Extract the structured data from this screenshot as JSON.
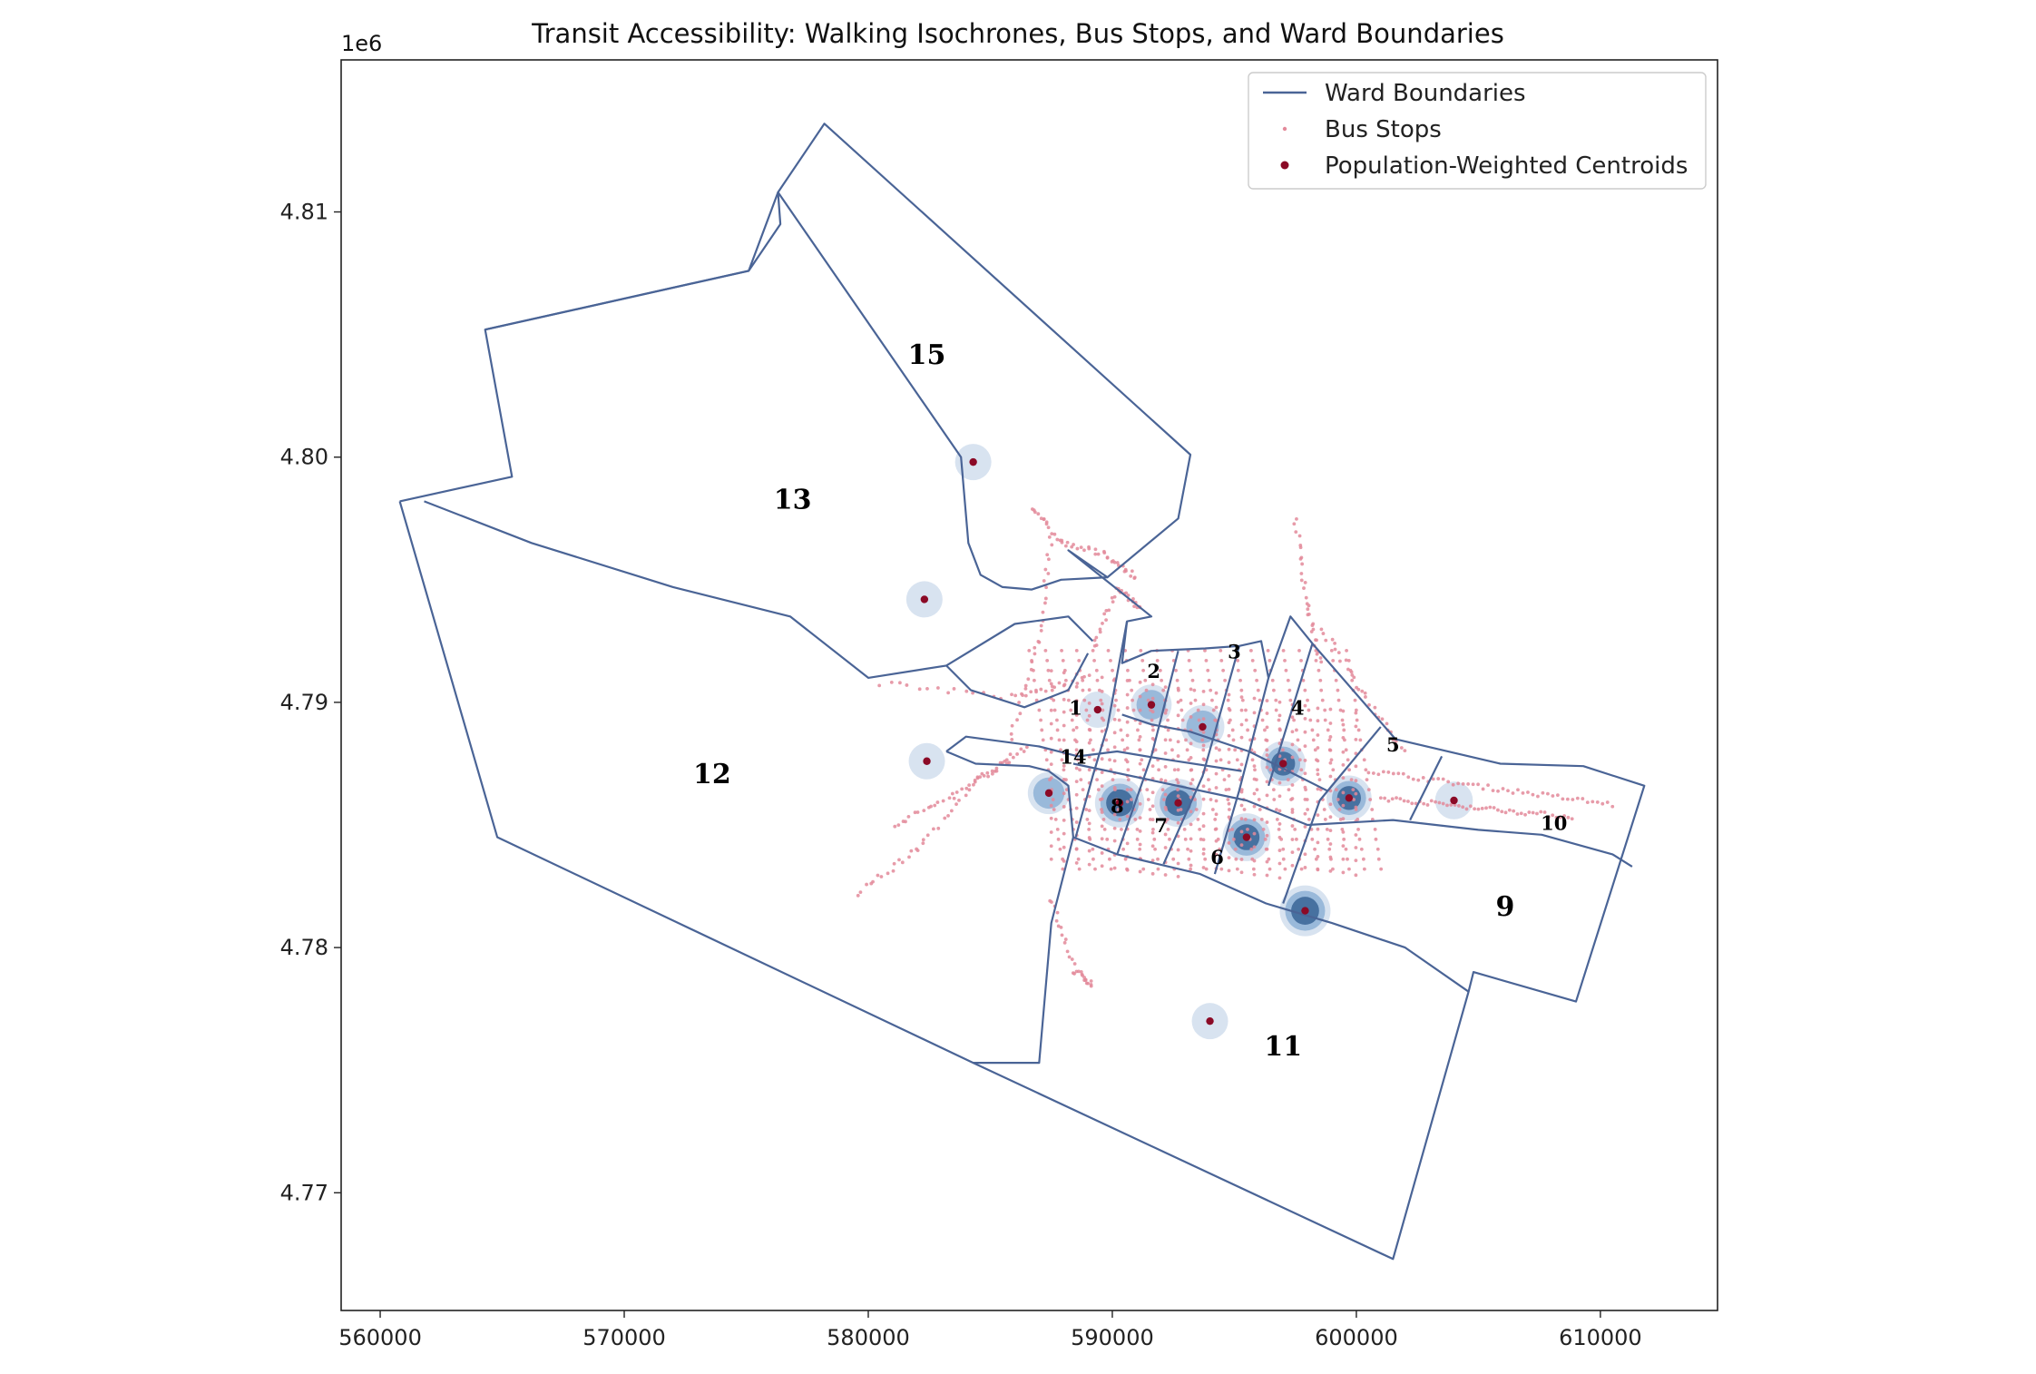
{
  "chart_data": {
    "type": "map",
    "title": "Transit Accessibility: Walking Isochrones, Bus Stops, and Ward Boundaries",
    "axes": {
      "x": {
        "ticks": [
          560000,
          570000,
          580000,
          590000,
          600000,
          610000
        ],
        "tick_labels": [
          "560000",
          "570000",
          "580000",
          "590000",
          "600000",
          "610000"
        ],
        "xlim": [
          558400,
          614800
        ]
      },
      "y": {
        "ticks": [
          4.77,
          4.78,
          4.79,
          4.8,
          4.81
        ],
        "tick_labels": [
          "4.77",
          "4.78",
          "4.79",
          "4.80",
          "4.81"
        ],
        "ylim": [
          4.7652,
          4.8162
        ],
        "offset_label": "1e6"
      },
      "grid": false
    },
    "legend": {
      "placement": "top-right",
      "entries": [
        {
          "label": "Ward Boundaries",
          "kind": "line",
          "color": "#4a6496"
        },
        {
          "label": "Bus Stops",
          "kind": "marker-small",
          "color": "#e38a9a"
        },
        {
          "label": "Population-Weighted Centroids",
          "kind": "marker",
          "color": "#8b0a26"
        }
      ]
    },
    "wards": [
      {
        "id": "1",
        "label_x": 588500,
        "label_y": 4.7895
      },
      {
        "id": "2",
        "label_x": 591700,
        "label_y": 4.791
      },
      {
        "id": "3",
        "label_x": 595000,
        "label_y": 4.7918
      },
      {
        "id": "4",
        "label_x": 597600,
        "label_y": 4.7895
      },
      {
        "id": "5",
        "label_x": 601500,
        "label_y": 4.788
      },
      {
        "id": "6",
        "label_x": 594300,
        "label_y": 4.7834
      },
      {
        "id": "7",
        "label_x": 592000,
        "label_y": 4.7847
      },
      {
        "id": "8",
        "label_x": 590200,
        "label_y": 4.7855
      },
      {
        "id": "9",
        "label_x": 606100,
        "label_y": 4.7813
      },
      {
        "id": "10",
        "label_x": 608100,
        "label_y": 4.7848
      },
      {
        "id": "11",
        "label_x": 597000,
        "label_y": 4.7756
      },
      {
        "id": "12",
        "label_x": 573600,
        "label_y": 4.7867
      },
      {
        "id": "13",
        "label_x": 576900,
        "label_y": 4.7979
      },
      {
        "id": "14",
        "label_x": 588400,
        "label_y": 4.7875
      },
      {
        "id": "15",
        "label_x": 582400,
        "label_y": 4.8038
      }
    ],
    "ward_boundaries": [
      {
        "name": "outer",
        "points": [
          [
            560800,
            4.7982
          ],
          [
            565400,
            4.7992
          ],
          [
            564300,
            4.8052
          ],
          [
            575100,
            4.8076
          ],
          [
            576400,
            4.8095
          ],
          [
            576300,
            4.8108
          ],
          [
            578200,
            4.8136
          ],
          [
            593200,
            4.8001
          ],
          [
            592700,
            4.7975
          ],
          [
            589800,
            4.7951
          ],
          [
            588200,
            4.7962
          ],
          [
            591600,
            4.7935
          ],
          [
            590600,
            4.7933
          ],
          [
            590400,
            4.7916
          ],
          [
            591600,
            4.7921
          ],
          [
            593800,
            4.7922
          ],
          [
            595200,
            4.7923
          ],
          [
            596100,
            4.7925
          ],
          [
            596400,
            4.791
          ],
          [
            597300,
            4.7935
          ],
          [
            598200,
            4.7924
          ],
          [
            601600,
            4.7885
          ],
          [
            605900,
            4.7875
          ],
          [
            609300,
            4.7874
          ],
          [
            611800,
            4.7866
          ],
          [
            609000,
            4.7778
          ],
          [
            604800,
            4.779
          ],
          [
            604600,
            4.7782
          ],
          [
            601500,
            4.7673
          ],
          [
            584300,
            4.7753
          ],
          [
            564800,
            4.7845
          ],
          [
            560800,
            4.7982
          ]
        ]
      },
      {
        "name": "13-15",
        "points": [
          [
            564300,
            4.8052
          ],
          [
            575100,
            4.8076
          ],
          [
            576300,
            4.8108
          ],
          [
            583800,
            4.8
          ],
          [
            584100,
            4.7965
          ],
          [
            584600,
            4.7952
          ],
          [
            585500,
            4.7947
          ],
          [
            586700,
            4.7946
          ],
          [
            587900,
            4.795
          ],
          [
            589800,
            4.7951
          ]
        ]
      },
      {
        "name": "12-13",
        "points": [
          [
            561800,
            4.7982
          ],
          [
            566200,
            4.7965
          ],
          [
            572000,
            4.7947
          ],
          [
            576800,
            4.7935
          ],
          [
            580000,
            4.791
          ],
          [
            583200,
            4.7915
          ],
          [
            586000,
            4.7932
          ],
          [
            588200,
            4.7935
          ],
          [
            589200,
            4.7925
          ]
        ]
      },
      {
        "name": "13-1",
        "points": [
          [
            583200,
            4.7915
          ],
          [
            584200,
            4.7905
          ],
          [
            586400,
            4.7898
          ],
          [
            588200,
            4.7905
          ],
          [
            589000,
            4.792
          ]
        ]
      },
      {
        "name": "core-south",
        "points": [
          [
            588400,
            4.7875
          ],
          [
            595500,
            4.786
          ],
          [
            598000,
            4.785
          ],
          [
            601500,
            4.7852
          ],
          [
            605000,
            4.7848
          ],
          [
            607600,
            4.7846
          ],
          [
            610500,
            4.7838
          ],
          [
            611300,
            4.7833
          ]
        ]
      },
      {
        "name": "14-north",
        "points": [
          [
            583200,
            4.788
          ],
          [
            584000,
            4.7886
          ],
          [
            587000,
            4.7882
          ],
          [
            588600,
            4.7878
          ],
          [
            590200,
            4.788
          ],
          [
            592000,
            4.7877
          ],
          [
            595300,
            4.7872
          ]
        ]
      },
      {
        "name": "14-west",
        "points": [
          [
            583200,
            4.788
          ],
          [
            584400,
            4.7875
          ],
          [
            586600,
            4.7874
          ],
          [
            587400,
            4.7872
          ],
          [
            588200,
            4.7866
          ],
          [
            588400,
            4.7845
          ]
        ]
      },
      {
        "name": "11-top",
        "points": [
          [
            588400,
            4.7845
          ],
          [
            590200,
            4.7838
          ],
          [
            593600,
            4.783
          ],
          [
            596300,
            4.7818
          ],
          [
            599000,
            4.781
          ],
          [
            602000,
            4.78
          ],
          [
            604600,
            4.7782
          ]
        ]
      },
      {
        "name": "11-west",
        "points": [
          [
            588400,
            4.7845
          ],
          [
            587500,
            4.781
          ],
          [
            587000,
            4.7753
          ],
          [
            584300,
            4.7753
          ]
        ]
      },
      {
        "name": "v-2a",
        "points": [
          [
            590600,
            4.7933
          ],
          [
            589800,
            4.789
          ],
          [
            589200,
            4.787
          ],
          [
            588500,
            4.7845
          ]
        ]
      },
      {
        "name": "v-2b",
        "points": [
          [
            592700,
            4.7921
          ],
          [
            591600,
            4.7878
          ],
          [
            590200,
            4.7838
          ]
        ]
      },
      {
        "name": "v-3",
        "points": [
          [
            595200,
            4.7923
          ],
          [
            593700,
            4.787
          ],
          [
            592100,
            4.7834
          ]
        ]
      },
      {
        "name": "v-4",
        "points": [
          [
            596400,
            4.791
          ],
          [
            595200,
            4.7864
          ],
          [
            594200,
            4.783
          ]
        ]
      },
      {
        "name": "v-4b",
        "points": [
          [
            598200,
            4.7924
          ],
          [
            596400,
            4.7866
          ]
        ]
      },
      {
        "name": "v-5",
        "points": [
          [
            601000,
            4.789
          ],
          [
            598500,
            4.786
          ],
          [
            597000,
            4.7818
          ]
        ]
      },
      {
        "name": "v-10",
        "points": [
          [
            603500,
            4.7878
          ],
          [
            602200,
            4.7852
          ]
        ]
      },
      {
        "name": "diag",
        "points": [
          [
            590400,
            4.7895
          ],
          [
            591600,
            4.7891
          ],
          [
            593200,
            4.7888
          ],
          [
            595600,
            4.788
          ],
          [
            597600,
            4.787
          ],
          [
            598800,
            4.7864
          ]
        ]
      }
    ],
    "centroids": [
      {
        "x": 584300,
        "y": 4.7998,
        "iso": 0.0
      },
      {
        "x": 582300,
        "y": 4.7942,
        "iso": 0.0
      },
      {
        "x": 582400,
        "y": 4.7876,
        "iso": 0.0
      },
      {
        "x": 587400,
        "y": 4.7863,
        "iso": 0.4
      },
      {
        "x": 589400,
        "y": 4.7897,
        "iso": 0.0
      },
      {
        "x": 591600,
        "y": 4.7899,
        "iso": 0.3
      },
      {
        "x": 593700,
        "y": 4.789,
        "iso": 0.5
      },
      {
        "x": 597000,
        "y": 4.7875,
        "iso": 0.6
      },
      {
        "x": 599700,
        "y": 4.7861,
        "iso": 0.6
      },
      {
        "x": 604000,
        "y": 4.786,
        "iso": 0.1
      },
      {
        "x": 590300,
        "y": 4.7859,
        "iso": 0.9
      },
      {
        "x": 592700,
        "y": 4.7859,
        "iso": 0.8
      },
      {
        "x": 595500,
        "y": 4.7845,
        "iso": 0.8
      },
      {
        "x": 597900,
        "y": 4.7815,
        "iso": 1.0
      },
      {
        "x": 594000,
        "y": 4.777,
        "iso": 0.0
      }
    ],
    "bus_stop_density": {
      "core_x": [
        585800,
        602200
      ],
      "core_y": [
        4.7828,
        4.7932
      ]
    }
  }
}
